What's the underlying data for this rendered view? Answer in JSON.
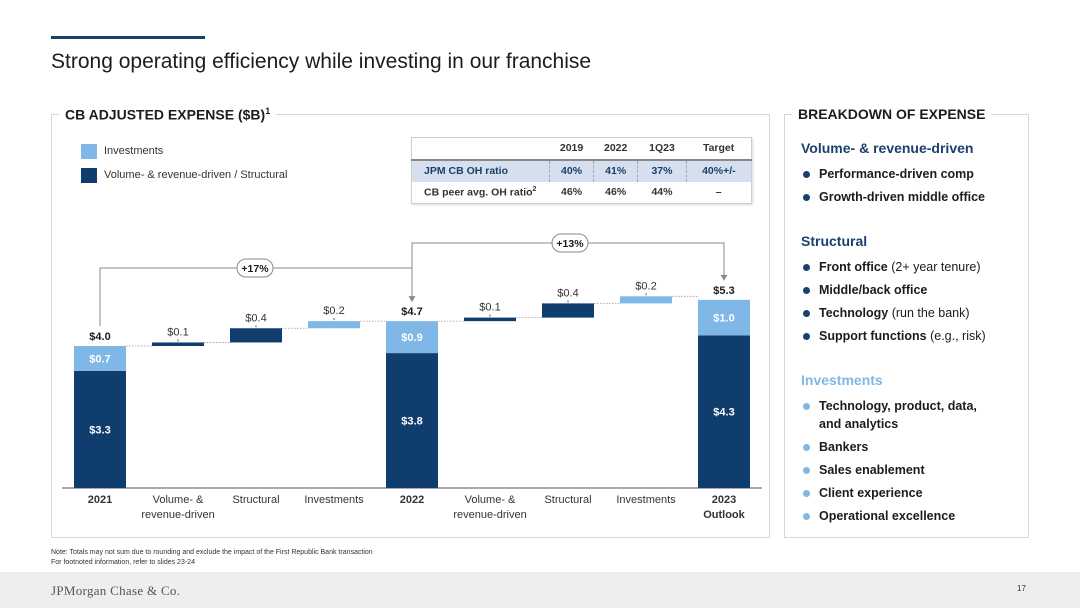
{
  "title": "Strong operating efficiency while investing in our franchise",
  "left_section": {
    "title": "CB ADJUSTED EXPENSE ($B)",
    "footnote_mark": "1"
  },
  "right_section": {
    "title": "BREAKDOWN OF EXPENSE"
  },
  "legend": [
    {
      "label": "Investments",
      "color": "#7fb7e6"
    },
    {
      "label": "Volume- & revenue-driven / Structural",
      "color": "#0f3d6e"
    }
  ],
  "ratio_table": {
    "headers": [
      "",
      "2019",
      "2022",
      "1Q23",
      "Target"
    ],
    "rows": [
      {
        "label": "JPM CB OH ratio",
        "values": [
          "40%",
          "41%",
          "37%",
          "40%+/-"
        ]
      },
      {
        "label": "CB peer avg. OH ratio",
        "sup": "2",
        "values": [
          "46%",
          "46%",
          "44%",
          "–"
        ]
      }
    ]
  },
  "chart_data": {
    "type": "bar",
    "subtype": "waterfall",
    "colors": {
      "structural": "#0f3d6e",
      "investments": "#7fb7e6"
    },
    "categories": [
      [
        "2021"
      ],
      [
        "Volume- &",
        "revenue-driven"
      ],
      [
        "Structural"
      ],
      [
        "Investments"
      ],
      [
        "2022"
      ],
      [
        "Volume- &",
        "revenue-driven"
      ],
      [
        "Structural"
      ],
      [
        "Investments"
      ],
      [
        "2023",
        "Outlook"
      ]
    ],
    "bars": [
      {
        "kind": "total",
        "base": 3.3,
        "top": 0.7,
        "total_label": "$4.0",
        "base_label": "$3.3",
        "top_label": "$0.7"
      },
      {
        "kind": "step",
        "color": "structural",
        "start": 4.0,
        "value": 0.1,
        "label": "$0.1"
      },
      {
        "kind": "step",
        "color": "structural",
        "start": 4.1,
        "value": 0.4,
        "label": "$0.4"
      },
      {
        "kind": "step",
        "color": "investments",
        "start": 4.5,
        "value": 0.2,
        "label": "$0.2"
      },
      {
        "kind": "total",
        "base": 3.8,
        "top": 0.9,
        "total_label": "$4.7",
        "base_label": "$3.8",
        "top_label": "$0.9"
      },
      {
        "kind": "step",
        "color": "structural",
        "start": 4.7,
        "value": 0.1,
        "label": "$0.1"
      },
      {
        "kind": "step",
        "color": "structural",
        "start": 4.8,
        "value": 0.4,
        "label": "$0.4"
      },
      {
        "kind": "step",
        "color": "investments",
        "start": 5.2,
        "value": 0.2,
        "label": "$0.2"
      },
      {
        "kind": "total",
        "base": 4.3,
        "top": 1.0,
        "total_label": "$5.3",
        "base_label": "$4.3",
        "top_label": "$1.0"
      }
    ],
    "growth_annotations": [
      {
        "label": "+17%",
        "from": "2021",
        "to": "2022"
      },
      {
        "label": "+13%",
        "from": "2022",
        "to": "2023 Outlook"
      }
    ]
  },
  "breakdown": [
    {
      "heading": "Volume- & revenue-driven",
      "color": "#1b3f6e",
      "dot": "#1b3f6e",
      "items": [
        {
          "lines": [
            [
              {
                "text": "Performance-driven comp",
                "bold": true
              }
            ]
          ]
        },
        {
          "lines": [
            [
              {
                "text": "Growth-driven middle office",
                "bold": true
              }
            ]
          ]
        }
      ]
    },
    {
      "heading": "Structural",
      "color": "#1b3f6e",
      "dot": "#1b3f6e",
      "items": [
        {
          "lines": [
            [
              {
                "text": "Front office",
                "bold": true
              },
              {
                "text": " (2+ year tenure)",
                "bold": false
              }
            ]
          ]
        },
        {
          "lines": [
            [
              {
                "text": "Middle/back office",
                "bold": true
              }
            ]
          ]
        },
        {
          "lines": [
            [
              {
                "text": "Technology",
                "bold": true
              },
              {
                "text": " (run the bank)",
                "bold": false
              }
            ]
          ]
        },
        {
          "lines": [
            [
              {
                "text": "Support functions",
                "bold": true
              },
              {
                "text": " (e.g., risk)",
                "bold": false
              }
            ]
          ]
        }
      ]
    },
    {
      "heading": "Investments",
      "color": "#7fb7e6",
      "dot": "#7fb7e6",
      "items": [
        {
          "lines": [
            [
              {
                "text": "Technology, product, data,",
                "bold": true
              }
            ],
            [
              {
                "text": "and analytics",
                "bold": true
              }
            ]
          ]
        },
        {
          "lines": [
            [
              {
                "text": "Bankers",
                "bold": true
              }
            ]
          ]
        },
        {
          "lines": [
            [
              {
                "text": "Sales enablement",
                "bold": true
              }
            ]
          ]
        },
        {
          "lines": [
            [
              {
                "text": "Client experience",
                "bold": true
              }
            ]
          ]
        },
        {
          "lines": [
            [
              {
                "text": "Operational excellence",
                "bold": true
              }
            ]
          ]
        }
      ]
    }
  ],
  "notes": [
    "Note: Totals may not sum due to rounding and exclude the impact of the First Republic Bank transaction",
    "For footnoted information, refer to slides 23-24"
  ],
  "footer": {
    "brand": "JPMorgan Chase & Co.",
    "page": "17"
  }
}
